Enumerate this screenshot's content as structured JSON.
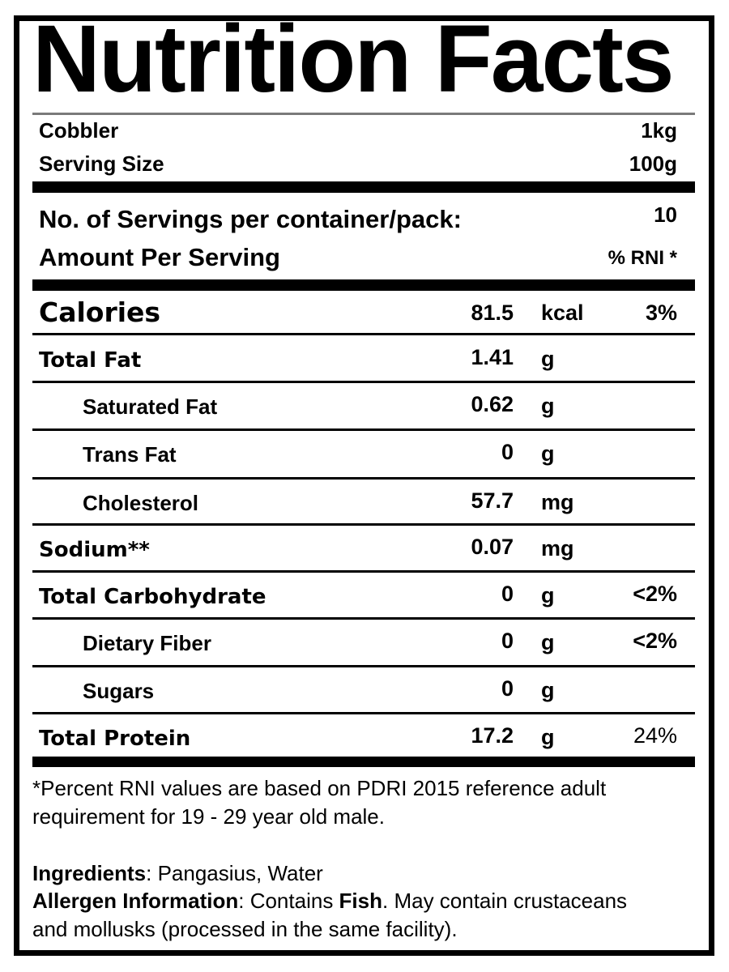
{
  "title": "Nutrition Facts",
  "product": {
    "name": "Cobbler",
    "net_weight": "1kg"
  },
  "serving_size": {
    "label": "Serving Size",
    "value": "100g"
  },
  "servings_per_container": {
    "label": "No. of Servings per container/pack:",
    "value": "10"
  },
  "amount_header": {
    "label": "Amount Per Serving",
    "rni_label": "% RNI *"
  },
  "calories": {
    "label": "Calories",
    "value": "81.5",
    "unit": "kcal",
    "rni": "3%"
  },
  "nutrients": [
    {
      "label": "Total Fat",
      "value": "1.41",
      "unit": "g",
      "rni": ""
    },
    {
      "label": "Saturated Fat",
      "value": "0.62",
      "unit": "g",
      "rni": ""
    },
    {
      "label": "Trans Fat",
      "value": "0",
      "unit": "g",
      "rni": ""
    },
    {
      "label": "Cholesterol",
      "value": "57.7",
      "unit": "mg",
      "rni": ""
    },
    {
      "label": "Sodium**",
      "value": "0.07",
      "unit": "mg",
      "rni": ""
    },
    {
      "label": "Total Carbohydrate",
      "value": "0",
      "unit": "g",
      "rni": "<2%"
    },
    {
      "label": "Dietary Fiber",
      "value": "0",
      "unit": "g",
      "rni": "<2%"
    },
    {
      "label": "Sugars",
      "value": "0",
      "unit": "g",
      "rni": ""
    },
    {
      "label": "Total Protein",
      "value": "17.2",
      "unit": "g",
      "rni": "24%"
    }
  ],
  "footnote": {
    "line1": "*Percent RNI values are based on PDRI 2015 reference adult",
    "line2": "requirement for 19 - 29 year old male."
  },
  "ingredients": {
    "label": "Ingredients",
    "text": ": Pangasius, Water"
  },
  "allergen": {
    "label": "Allergen Information",
    "text1": ": Contains ",
    "bold": "Fish",
    "text2": ". May contain crustaceans",
    "line2": "and mollusks (processed in the same facility)."
  }
}
